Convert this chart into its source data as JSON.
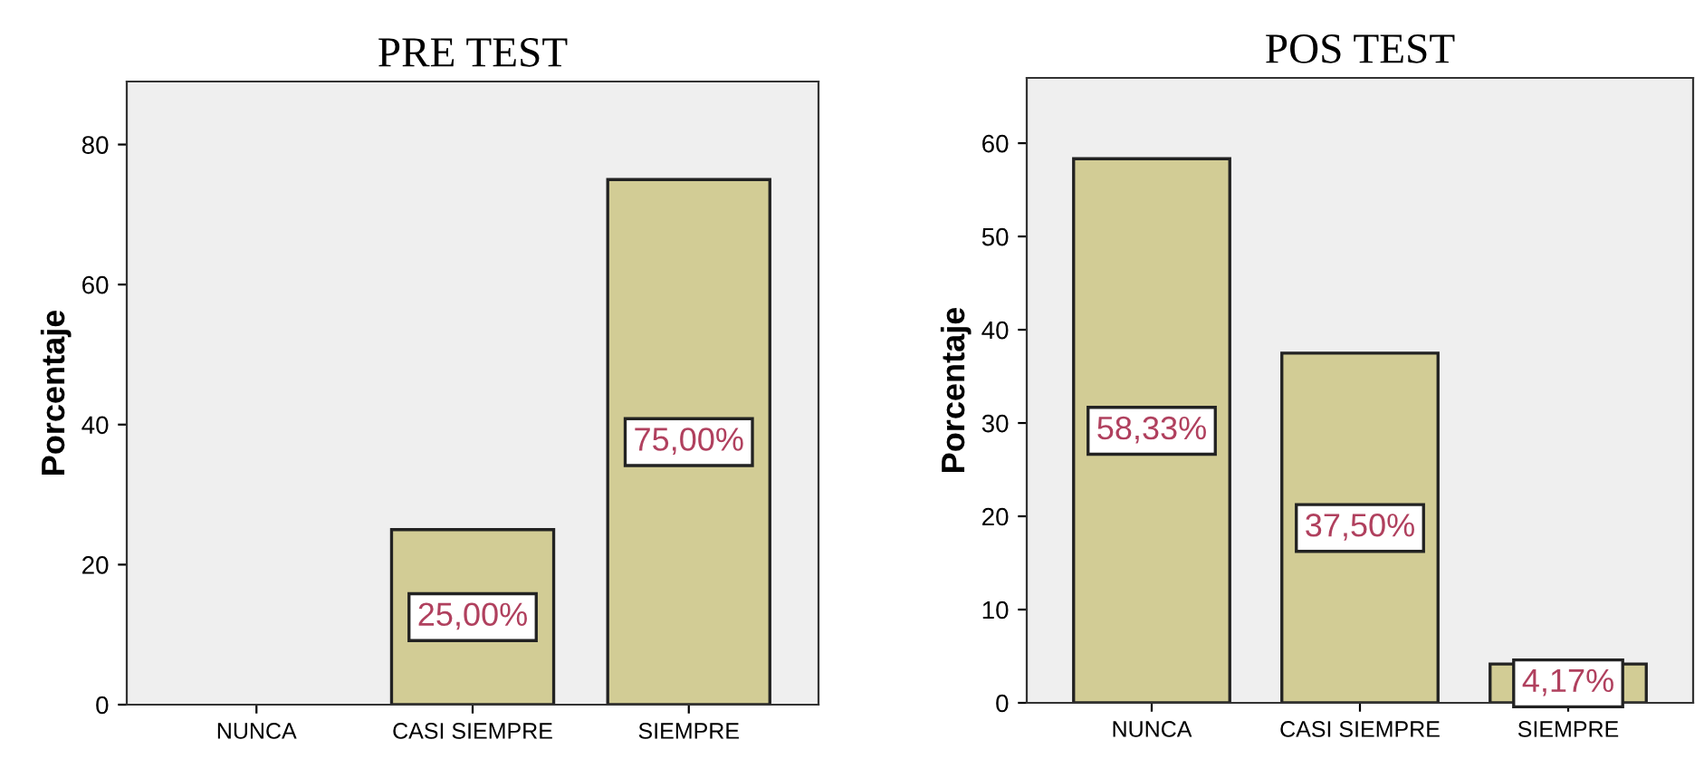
{
  "chart_data": [
    {
      "type": "bar",
      "title": "PRE TEST",
      "ylabel": "Porcentaje",
      "categories": [
        "NUNCA",
        "CASI SIEMPRE",
        "SIEMPRE"
      ],
      "values": [
        0,
        25,
        75
      ],
      "value_labels": [
        null,
        "25,00%",
        "75,00%"
      ],
      "color": "#d2cc95",
      "ylim": [
        0,
        89
      ],
      "yticks": [
        0,
        20,
        40,
        60,
        80
      ],
      "grid": false,
      "legend": false
    },
    {
      "type": "bar",
      "title": "POS TEST",
      "ylabel": "Porcentaje",
      "categories": [
        "NUNCA",
        "CASI SIEMPRE",
        "SIEMPRE"
      ],
      "values": [
        58.33,
        37.5,
        4.17
      ],
      "value_labels": [
        "58,33%",
        "37,50%",
        "4,17%"
      ],
      "color": "#d2cc95",
      "ylim": [
        0,
        67
      ],
      "yticks": [
        0,
        10,
        20,
        30,
        40,
        50,
        60
      ],
      "grid": false,
      "legend": false
    }
  ]
}
